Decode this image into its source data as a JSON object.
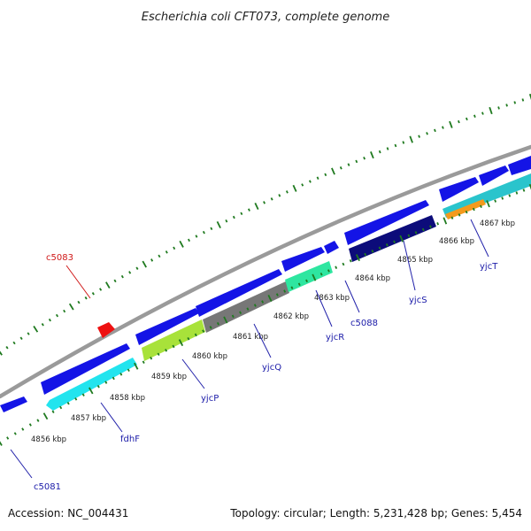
{
  "title": "Escherichia coli CFT073, complete genome",
  "footer": {
    "accession": "Accession: NC_004431",
    "summary": "Topology: circular; Length: 5,231,428 bp; Genes: 5,454"
  },
  "colors": {
    "backbone": "#9a9a9a",
    "gene_blue": "#1414e6",
    "gene_cyan": "#22e4ee",
    "gene_lime": "#a8e23a",
    "gene_gray": "#777777",
    "gene_mint": "#2ee6a0",
    "gene_navy": "#0c0c7a",
    "gene_teal": "#2ac4cc",
    "gene_orange": "#f39a1c",
    "gene_red": "#ee1111",
    "tick_green": "#1f7a1f",
    "label_blue": "#1a1aa8",
    "label_red": "#d01818"
  },
  "scale_labels": [
    "4856 kbp",
    "4857 kbp",
    "4858 kbp",
    "4859 kbp",
    "4860 kbp",
    "4861 kbp",
    "4862 kbp",
    "4863 kbp",
    "4864 kbp",
    "4865 kbp",
    "4866 kbp",
    "4867 kbp"
  ],
  "gene_labels": [
    {
      "name": "c5081",
      "color": "blue"
    },
    {
      "name": "fdhF",
      "color": "blue"
    },
    {
      "name": "yjcP",
      "color": "blue"
    },
    {
      "name": "yjcQ",
      "color": "blue"
    },
    {
      "name": "yjcR",
      "color": "blue"
    },
    {
      "name": "c5088",
      "color": "blue"
    },
    {
      "name": "yjcS",
      "color": "blue"
    },
    {
      "name": "yjcT",
      "color": "blue"
    },
    {
      "name": "c5083",
      "color": "red"
    }
  ]
}
